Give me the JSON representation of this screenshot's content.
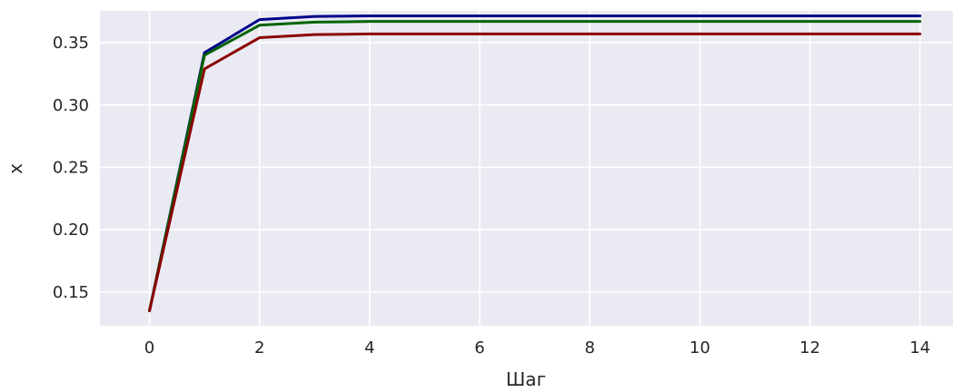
{
  "chart_data": {
    "type": "line",
    "xlabel": "Шаг",
    "ylabel": "x",
    "xlim": [
      -0.9,
      14.6
    ],
    "ylim": [
      0.123,
      0.3755
    ],
    "grid": true,
    "x": [
      0,
      1,
      2,
      3,
      4,
      5,
      6,
      7,
      8,
      9,
      10,
      11,
      12,
      13,
      14
    ],
    "x_ticks": [
      0,
      2,
      4,
      6,
      8,
      10,
      12,
      14
    ],
    "y_ticks": [
      0.15,
      0.2,
      0.25,
      0.3,
      0.35
    ],
    "x_tick_labels": [
      "0",
      "2",
      "4",
      "6",
      "8",
      "10",
      "12",
      "14"
    ],
    "y_tick_labels": [
      "0.15",
      "0.20",
      "0.25",
      "0.30",
      "0.35"
    ],
    "series": [
      {
        "color": "#00008b",
        "values": [
          0.135,
          0.342,
          0.3685,
          0.371,
          0.3715,
          0.3715,
          0.3715,
          0.3715,
          0.3715,
          0.3715,
          0.3715,
          0.3715,
          0.3715,
          0.3715,
          0.3715
        ]
      },
      {
        "color": "#006400",
        "values": [
          0.135,
          0.34,
          0.364,
          0.3665,
          0.367,
          0.367,
          0.367,
          0.367,
          0.367,
          0.367,
          0.367,
          0.367,
          0.367,
          0.367,
          0.367
        ]
      },
      {
        "color": "#8b0000",
        "values": [
          0.135,
          0.329,
          0.354,
          0.3565,
          0.357,
          0.357,
          0.357,
          0.357,
          0.357,
          0.357,
          0.357,
          0.357,
          0.357,
          0.357,
          0.357
        ]
      }
    ],
    "plot_background": "#eaeaf2",
    "grid_color": "#ffffff"
  }
}
